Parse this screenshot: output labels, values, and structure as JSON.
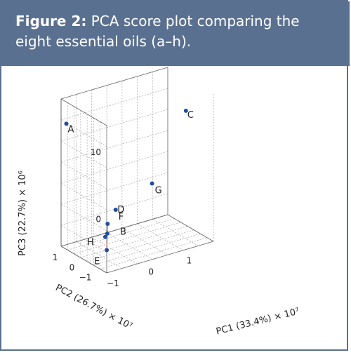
{
  "caption": {
    "label": "Figure 2:",
    "text": "PCA score plot comparing the eight essential oils (a–h)."
  },
  "colors": {
    "caption_bg": "#5a7090",
    "point": "#1f4e9a",
    "connector": "#e07050",
    "grid": "#b0b0b0",
    "axis_line": "#606060",
    "text": "#222222"
  },
  "chart_data": {
    "type": "scatter",
    "dimensions": 3,
    "title": "",
    "xlabel": "PC1 (33.4%) × 10⁷",
    "ylabel": "PC2 (26.7%) × 10⁷",
    "zlabel": "PC3 (22.7%) × 10⁶",
    "x_ticks": [
      -1,
      0,
      1
    ],
    "y_ticks": [
      -1,
      0,
      1
    ],
    "z_ticks": [
      0,
      10
    ],
    "xlim": [
      -1.2,
      1.6
    ],
    "ylim": [
      -1.4,
      1.3
    ],
    "zlim": [
      -8,
      14
    ],
    "grid": true,
    "points": [
      {
        "label": "A",
        "x": -1.15,
        "y": 1.1,
        "z": 10.5
      },
      {
        "label": "B",
        "x": -0.65,
        "y": -0.2,
        "z": -4.8
      },
      {
        "label": "C",
        "x": 1.5,
        "y": 0.0,
        "z": 9.6
      },
      {
        "label": "D",
        "x": -0.6,
        "y": -0.1,
        "z": -3.6
      },
      {
        "label": "E",
        "x": -0.8,
        "y": -0.5,
        "z": -6.6
      },
      {
        "label": "F",
        "x": -0.3,
        "y": 0.1,
        "z": -2.3
      },
      {
        "label": "G",
        "x": 0.7,
        "y": 0.2,
        "z": -0.2
      },
      {
        "label": "H",
        "x": -0.75,
        "y": -0.3,
        "z": -5.0
      }
    ]
  }
}
